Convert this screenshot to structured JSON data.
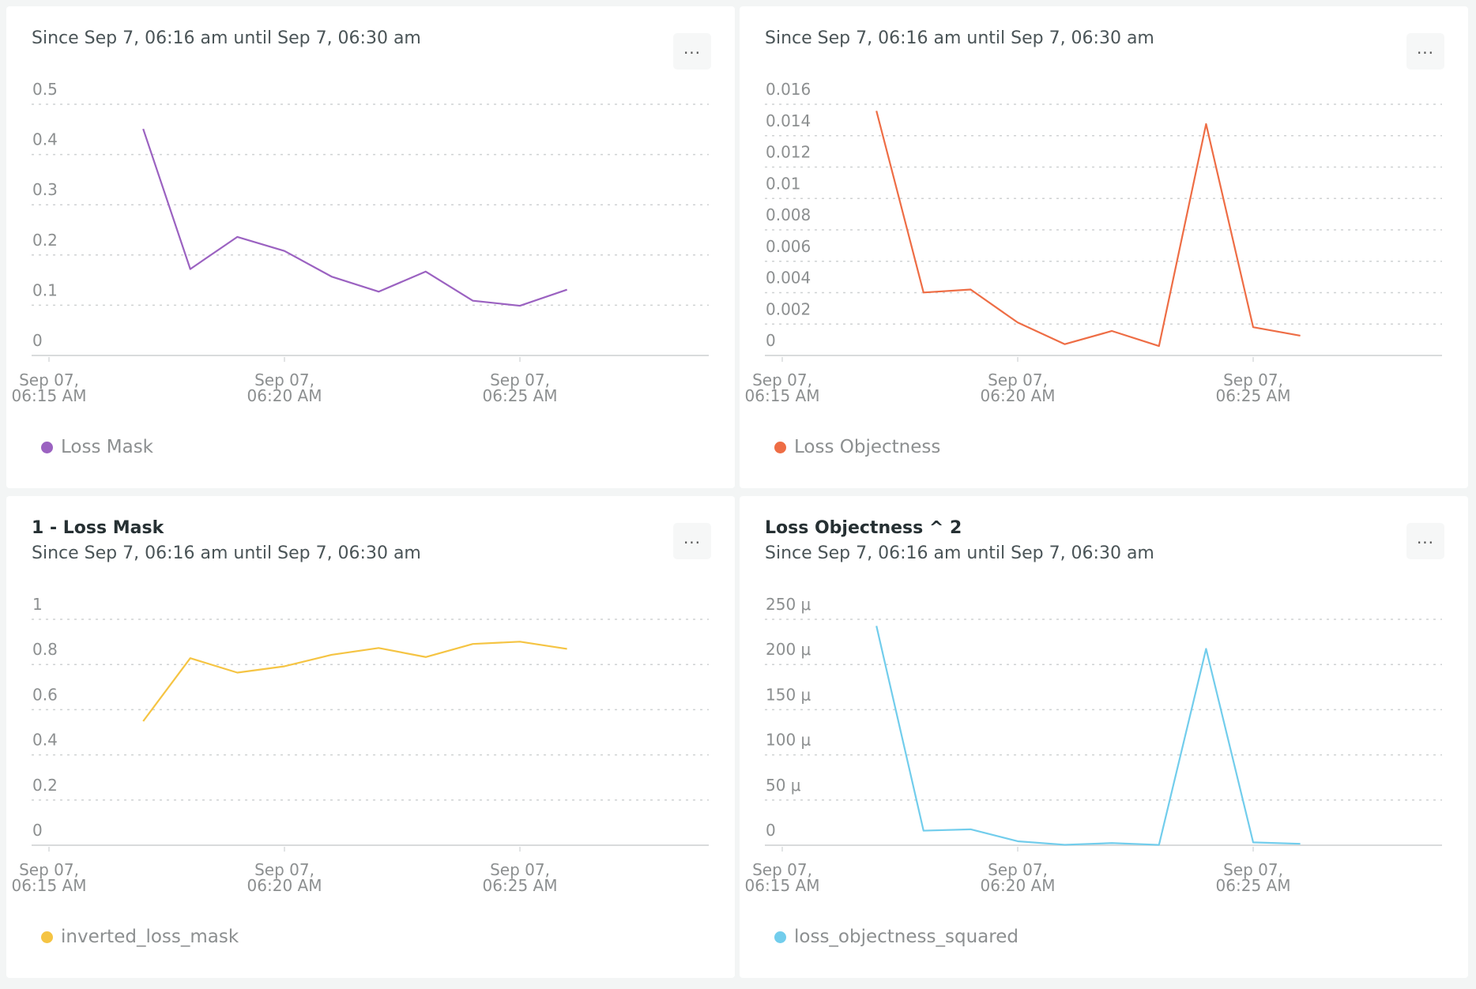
{
  "menu_label": "...",
  "chart_data": [
    {
      "type": "line",
      "title": "",
      "subtitle": "Since Sep 7, 06:16 am until Sep 7, 06:30 am",
      "series": [
        {
          "name": "Loss Mask",
          "color": "#9b62c1",
          "x": [
            "06:17",
            "06:18",
            "06:19",
            "06:20",
            "06:21",
            "06:22",
            "06:23",
            "06:24",
            "06:25",
            "06:26"
          ],
          "values": [
            0.451,
            0.172,
            0.236,
            0.208,
            0.157,
            0.127,
            0.167,
            0.109,
            0.099,
            0.131
          ]
        }
      ],
      "ylim": [
        0,
        0.5
      ],
      "yticks": [
        {
          "v": 0,
          "label": "0"
        },
        {
          "v": 0.1,
          "label": "0.1"
        },
        {
          "v": 0.2,
          "label": "0.2"
        },
        {
          "v": 0.3,
          "label": "0.3"
        },
        {
          "v": 0.4,
          "label": "0.4"
        },
        {
          "v": 0.5,
          "label": "0.5"
        }
      ],
      "xticks": [
        {
          "min": 15,
          "l1": "Sep 07,",
          "l2": "06:15 AM"
        },
        {
          "min": 20,
          "l1": "Sep 07,",
          "l2": "06:20 AM"
        },
        {
          "min": 25,
          "l1": "Sep 07,",
          "l2": "06:25 AM"
        }
      ],
      "grid": true,
      "legend": "bottom-left"
    },
    {
      "type": "line",
      "title": "",
      "subtitle": "Since Sep 7, 06:16 am until Sep 7, 06:30 am",
      "series": [
        {
          "name": "Loss Objectness",
          "color": "#ee6d45",
          "x": [
            "06:17",
            "06:18",
            "06:19",
            "06:20",
            "06:21",
            "06:22",
            "06:23",
            "06:24",
            "06:25",
            "06:26"
          ],
          "values": [
            0.01558,
            0.00401,
            0.0042,
            0.0021,
            0.00072,
            0.00156,
            0.0006,
            0.01474,
            0.0018,
            0.00126
          ]
        }
      ],
      "ylim": [
        0,
        0.016
      ],
      "yticks": [
        {
          "v": 0,
          "label": "0"
        },
        {
          "v": 0.002,
          "label": "0.002"
        },
        {
          "v": 0.004,
          "label": "0.004"
        },
        {
          "v": 0.006,
          "label": "0.006"
        },
        {
          "v": 0.008,
          "label": "0.008"
        },
        {
          "v": 0.01,
          "label": "0.01"
        },
        {
          "v": 0.012,
          "label": "0.012"
        },
        {
          "v": 0.014,
          "label": "0.014"
        },
        {
          "v": 0.016,
          "label": "0.016"
        }
      ],
      "xticks": [
        {
          "min": 15,
          "l1": "Sep 07,",
          "l2": "06:15 AM"
        },
        {
          "min": 20,
          "l1": "Sep 07,",
          "l2": "06:20 AM"
        },
        {
          "min": 25,
          "l1": "Sep 07,",
          "l2": "06:25 AM"
        }
      ],
      "grid": true,
      "legend": "bottom-left"
    },
    {
      "type": "line",
      "title": "1 - Loss Mask",
      "subtitle": "Since Sep 7, 06:16 am until Sep 7, 06:30 am",
      "series": [
        {
          "name": "inverted_loss_mask",
          "color": "#f5c443",
          "x": [
            "06:17",
            "06:18",
            "06:19",
            "06:20",
            "06:21",
            "06:22",
            "06:23",
            "06:24",
            "06:25",
            "06:26"
          ],
          "values": [
            0.549,
            0.828,
            0.764,
            0.792,
            0.843,
            0.873,
            0.833,
            0.891,
            0.901,
            0.869
          ]
        }
      ],
      "ylim": [
        0,
        1
      ],
      "yticks": [
        {
          "v": 0,
          "label": "0"
        },
        {
          "v": 0.2,
          "label": "0.2"
        },
        {
          "v": 0.4,
          "label": "0.4"
        },
        {
          "v": 0.6,
          "label": "0.6"
        },
        {
          "v": 0.8,
          "label": "0.8"
        },
        {
          "v": 1,
          "label": "1"
        }
      ],
      "xticks": [
        {
          "min": 15,
          "l1": "Sep 07,",
          "l2": "06:15 AM"
        },
        {
          "min": 20,
          "l1": "Sep 07,",
          "l2": "06:20 AM"
        },
        {
          "min": 25,
          "l1": "Sep 07,",
          "l2": "06:25 AM"
        }
      ],
      "grid": true,
      "legend": "bottom-left"
    },
    {
      "type": "line",
      "title": "Loss Objectness ^ 2",
      "subtitle": "Since Sep 7, 06:16 am until Sep 7, 06:30 am",
      "series": [
        {
          "name": "loss_objectness_squared",
          "color": "#72cdec",
          "unit": "μ",
          "x": [
            "06:17",
            "06:18",
            "06:19",
            "06:20",
            "06:21",
            "06:22",
            "06:23",
            "06:24",
            "06:25",
            "06:26"
          ],
          "values": [
            242.7,
            16.1,
            17.6,
            4.4,
            0.5,
            2.4,
            0.4,
            217.3,
            3.2,
            1.6
          ]
        }
      ],
      "ylim": [
        0,
        250
      ],
      "yticks": [
        {
          "v": 0,
          "label": "0"
        },
        {
          "v": 50,
          "label": "50 μ"
        },
        {
          "v": 100,
          "label": "100 μ"
        },
        {
          "v": 150,
          "label": "150 μ"
        },
        {
          "v": 200,
          "label": "200 μ"
        },
        {
          "v": 250,
          "label": "250 μ"
        }
      ],
      "xticks": [
        {
          "min": 15,
          "l1": "Sep 07,",
          "l2": "06:15 AM"
        },
        {
          "min": 20,
          "l1": "Sep 07,",
          "l2": "06:20 AM"
        },
        {
          "min": 25,
          "l1": "Sep 07,",
          "l2": "06:25 AM"
        }
      ],
      "grid": true,
      "legend": "bottom-left"
    }
  ]
}
